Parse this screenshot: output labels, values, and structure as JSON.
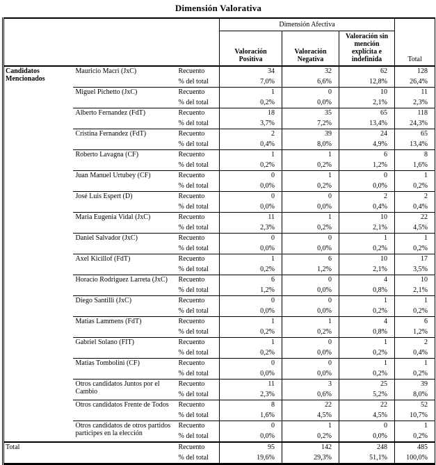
{
  "title": "Dimensión Valorativa",
  "colors": {
    "background": "#ffffff",
    "text": "#000000",
    "border": "#000000"
  },
  "table": {
    "row_header": "Candidatos Mencionados",
    "spanner": "Dimensión Afectiva",
    "col_headers": [
      "Valoración Positiva",
      "Valoración Negativa",
      "Valoración sin mención explícita e indefinida"
    ],
    "total_col_header": "Total",
    "metric_labels": [
      "Recuento",
      "% del total"
    ],
    "groups": [
      {
        "name": "Mauricio Macri (JxC)",
        "recuento": [
          "34",
          "32",
          "62",
          "128"
        ],
        "pct": [
          "7,0%",
          "6,6%",
          "12,8%",
          "26,4%"
        ]
      },
      {
        "name": "Miguel Pichetto (JxC)",
        "recuento": [
          "1",
          "0",
          "10",
          "11"
        ],
        "pct": [
          "0,2%",
          "0,0%",
          "2,1%",
          "2,3%"
        ]
      },
      {
        "name": "Alberto Fernandez (FdT)",
        "recuento": [
          "18",
          "35",
          "65",
          "118"
        ],
        "pct": [
          "3,7%",
          "7,2%",
          "13,4%",
          "24,3%"
        ]
      },
      {
        "name": "Cristina Fernandez (FdT)",
        "recuento": [
          "2",
          "39",
          "24",
          "65"
        ],
        "pct": [
          "0,4%",
          "8,0%",
          "4,9%",
          "13,4%"
        ]
      },
      {
        "name": "Roberto Lavagna (CF)",
        "recuento": [
          "1",
          "1",
          "6",
          "8"
        ],
        "pct": [
          "0,2%",
          "0,2%",
          "1,2%",
          "1,6%"
        ]
      },
      {
        "name": "Juan Manuel Urtubey (CF)",
        "recuento": [
          "0",
          "1",
          "0",
          "1"
        ],
        "pct": [
          "0,0%",
          "0,2%",
          "0,0%",
          "0,2%"
        ]
      },
      {
        "name": "José Luis Espert (D)",
        "recuento": [
          "0",
          "0",
          "2",
          "2"
        ],
        "pct": [
          "0,0%",
          "0,0%",
          "0,4%",
          "0,4%"
        ]
      },
      {
        "name": "Maria Eugenia Vidal (JxC)",
        "recuento": [
          "11",
          "1",
          "10",
          "22"
        ],
        "pct": [
          "2,3%",
          "0,2%",
          "2,1%",
          "4,5%"
        ]
      },
      {
        "name": "Daniel Salvador (JxC)",
        "recuento": [
          "0",
          "0",
          "1",
          "1"
        ],
        "pct": [
          "0,0%",
          "0,0%",
          "0,2%",
          "0,2%"
        ]
      },
      {
        "name": "Axel Kicillof (FdT)",
        "recuento": [
          "1",
          "6",
          "10",
          "17"
        ],
        "pct": [
          "0,2%",
          "1,2%",
          "2,1%",
          "3,5%"
        ]
      },
      {
        "name": "Horacio Rodriguez Larreta (JxC)",
        "recuento": [
          "6",
          "0",
          "4",
          "10"
        ],
        "pct": [
          "1,2%",
          "0,0%",
          "0,8%",
          "2,1%"
        ]
      },
      {
        "name": "Diego Santilli (JxC)",
        "recuento": [
          "0",
          "0",
          "1",
          "1"
        ],
        "pct": [
          "0,0%",
          "0,0%",
          "0,2%",
          "0,2%"
        ]
      },
      {
        "name": "Matias Lammens (FdT)",
        "recuento": [
          "1",
          "1",
          "4",
          "6"
        ],
        "pct": [
          "0,2%",
          "0,2%",
          "0,8%",
          "1,2%"
        ]
      },
      {
        "name": "Gabriel Solano (FIT)",
        "recuento": [
          "1",
          "0",
          "1",
          "2"
        ],
        "pct": [
          "0,2%",
          "0,0%",
          "0,2%",
          "0,4%"
        ]
      },
      {
        "name": "Matias Tombolini (CF)",
        "recuento": [
          "0",
          "0",
          "1",
          "1"
        ],
        "pct": [
          "0,0%",
          "0,0%",
          "0,2%",
          "0,2%"
        ]
      },
      {
        "name": "Otros candidatos Juntos por el Cambio",
        "recuento": [
          "11",
          "3",
          "25",
          "39"
        ],
        "pct": [
          "2,3%",
          "0,6%",
          "5,2%",
          "8,0%"
        ]
      },
      {
        "name": "Otros candidatos Frente de Todos",
        "recuento": [
          "8",
          "22",
          "22",
          "52"
        ],
        "pct": [
          "1,6%",
          "4,5%",
          "4,5%",
          "10,7%"
        ]
      },
      {
        "name": "Otros candidatos de otros partidos participes en la elección",
        "recuento": [
          "0",
          "1",
          "0",
          "1"
        ],
        "pct": [
          "0,0%",
          "0,2%",
          "0,0%",
          "0,2%"
        ]
      }
    ],
    "total_row": {
      "name": "Total",
      "recuento": [
        "95",
        "142",
        "248",
        "485"
      ],
      "pct": [
        "19,6%",
        "29,3%",
        "51,1%",
        "100,0%"
      ]
    }
  }
}
